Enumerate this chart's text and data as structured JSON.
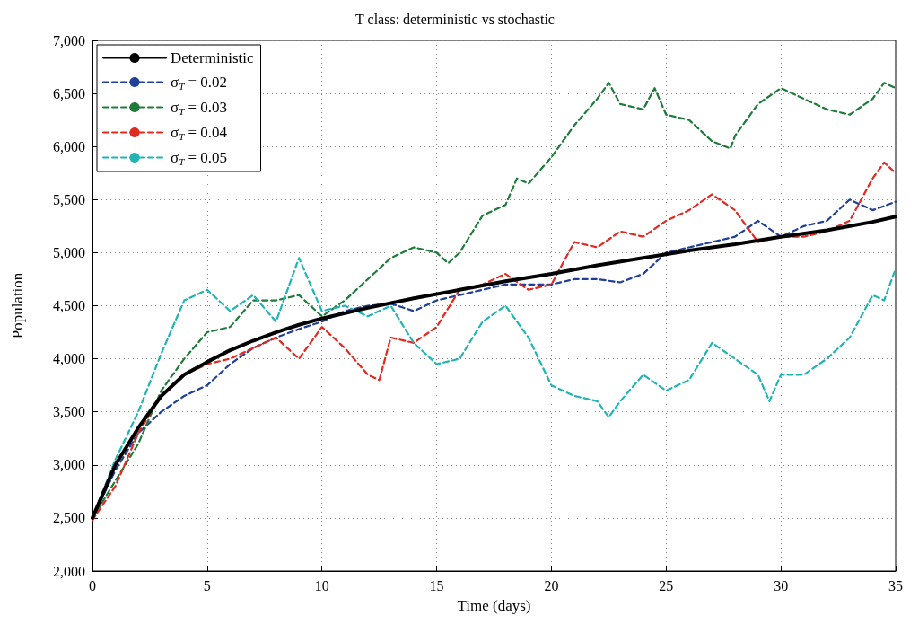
{
  "chart_data": {
    "type": "line",
    "title": "T class: deterministic vs stochastic",
    "xlabel": "Time (days)",
    "ylabel": "Population",
    "xlim": [
      0,
      35
    ],
    "xticks": [
      0,
      5,
      10,
      15,
      20,
      25,
      30,
      35
    ],
    "ylim": [
      2000,
      7000
    ],
    "yticks": [
      {
        "value": 2000,
        "label": "2,000"
      },
      {
        "value": 2500,
        "label": "2,500"
      },
      {
        "value": 3000,
        "label": "3,000"
      },
      {
        "value": 3500,
        "label": "3,500"
      },
      {
        "value": 4000,
        "label": "4,000"
      },
      {
        "value": 4500,
        "label": "4,500"
      },
      {
        "value": 5000,
        "label": "5,000"
      },
      {
        "value": 5500,
        "label": "5,500"
      },
      {
        "value": 6000,
        "label": "6,000"
      },
      {
        "value": 6500,
        "label": "6,500"
      },
      {
        "value": 7000,
        "label": "7,000"
      }
    ],
    "grid": true,
    "legend": "top left",
    "marker": "none",
    "series": [
      {
        "name": "Deterministic",
        "color": "#000000",
        "line_style": "solid",
        "x": [
          0,
          1,
          2,
          3,
          4,
          5,
          6,
          7,
          8,
          9,
          10,
          12,
          14,
          16,
          18,
          20,
          22,
          24,
          26,
          28,
          30,
          32,
          34,
          35
        ],
        "values": [
          2500,
          3000,
          3350,
          3650,
          3850,
          3970,
          4080,
          4170,
          4250,
          4320,
          4380,
          4480,
          4570,
          4650,
          4730,
          4800,
          4880,
          4950,
          5020,
          5080,
          5150,
          5210,
          5290,
          5340
        ]
      },
      {
        "name": "σ$_{T}$ = 0.02",
        "color": "#1f3f98",
        "line_style": "dashed",
        "x": [
          0,
          1,
          2,
          3,
          4,
          5,
          6,
          7,
          8,
          9,
          10,
          11,
          12,
          13,
          14,
          15,
          16,
          17,
          18,
          19,
          20,
          21,
          22,
          23,
          24,
          25,
          26,
          27,
          28,
          29,
          30,
          31,
          32,
          33,
          34,
          35
        ],
        "values": [
          2500,
          2950,
          3300,
          3500,
          3650,
          3750,
          3950,
          4100,
          4200,
          4280,
          4350,
          4450,
          4500,
          4520,
          4450,
          4550,
          4600,
          4650,
          4700,
          4700,
          4700,
          4750,
          4750,
          4720,
          4800,
          5000,
          5050,
          5100,
          5150,
          5300,
          5150,
          5250,
          5300,
          5500,
          5400,
          5480
        ]
      },
      {
        "name": "σ$_{T}$ = 0.03",
        "color": "#1e7b3a",
        "line_style": "dashed",
        "x": [
          0,
          1,
          2,
          3,
          4,
          5,
          6,
          7,
          8,
          9,
          10,
          11,
          12,
          13,
          14,
          15,
          15.5,
          16,
          17,
          18,
          18.5,
          19,
          20,
          21,
          22,
          22.5,
          23,
          24,
          24.5,
          25,
          26,
          27,
          27.8,
          28,
          29,
          30,
          31,
          32,
          33,
          34,
          34.5,
          35
        ],
        "values": [
          2500,
          2850,
          3200,
          3700,
          4000,
          4250,
          4300,
          4550,
          4550,
          4600,
          4400,
          4550,
          4750,
          4950,
          5050,
          5000,
          4900,
          5000,
          5350,
          5450,
          5700,
          5650,
          5900,
          6200,
          6450,
          6600,
          6400,
          6350,
          6550,
          6300,
          6250,
          6050,
          5980,
          6100,
          6400,
          6550,
          6450,
          6350,
          6300,
          6450,
          6600,
          6550
        ]
      },
      {
        "name": "σ$_{T}$ = 0.04",
        "color": "#e02a22",
        "line_style": "dashed",
        "x": [
          0,
          1,
          2,
          3,
          4,
          5,
          6,
          7,
          8,
          9,
          10,
          11,
          12,
          12.5,
          13,
          14,
          15,
          16,
          17,
          18,
          19,
          20,
          21,
          22,
          23,
          24,
          25,
          26,
          27,
          28,
          29,
          30,
          31,
          32,
          33,
          34,
          34.5,
          35
        ],
        "values": [
          2480,
          2800,
          3300,
          3650,
          3850,
          3950,
          4000,
          4100,
          4200,
          4000,
          4300,
          4100,
          3850,
          3800,
          4200,
          4150,
          4300,
          4650,
          4700,
          4800,
          4650,
          4700,
          5100,
          5050,
          5200,
          5150,
          5300,
          5400,
          5550,
          5400,
          5100,
          5150,
          5150,
          5200,
          5300,
          5700,
          5850,
          5750
        ]
      },
      {
        "name": "σ$_{T}$ = 0.05",
        "color": "#22b3b3",
        "line_style": "dashed",
        "x": [
          0,
          1,
          2,
          3,
          4,
          5,
          6,
          7,
          8,
          9,
          10,
          11,
          12,
          13,
          14,
          15,
          16,
          17,
          18,
          19,
          20,
          21,
          22,
          22.5,
          23,
          24,
          25,
          26,
          27,
          28,
          29,
          29.5,
          30,
          31,
          32,
          33,
          34,
          34.5,
          35
        ],
        "values": [
          2500,
          3050,
          3500,
          4050,
          4550,
          4650,
          4450,
          4600,
          4350,
          4950,
          4450,
          4500,
          4400,
          4500,
          4150,
          3950,
          4000,
          4350,
          4500,
          4200,
          3750,
          3650,
          3600,
          3450,
          3600,
          3850,
          3700,
          3800,
          4150,
          4000,
          3850,
          3600,
          3850,
          3850,
          4000,
          4200,
          4600,
          4550,
          4850
        ]
      }
    ]
  }
}
